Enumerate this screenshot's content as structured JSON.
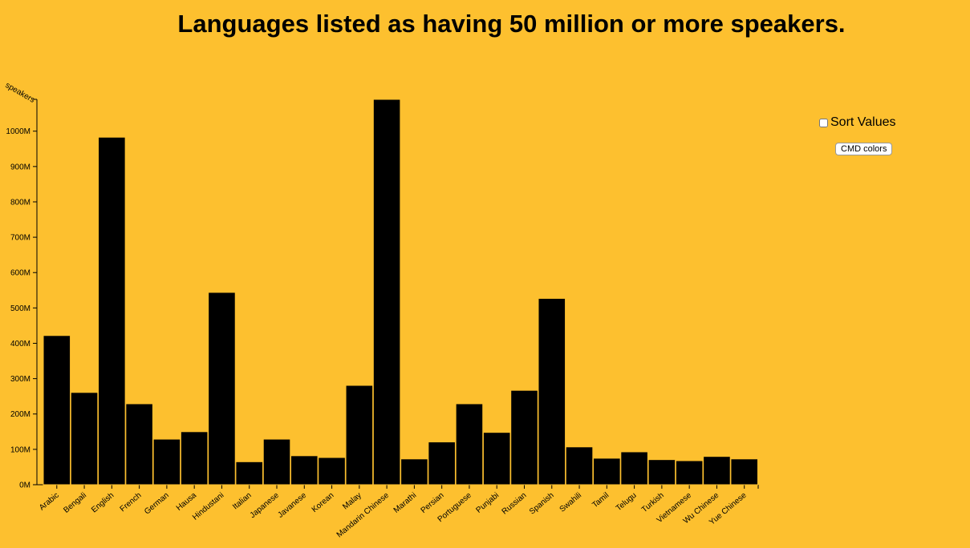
{
  "title": "Languages listed as having 50 million or more speakers.",
  "controls": {
    "sort_label": "Sort Values",
    "sort_checked": false,
    "colors_button": "CMD colors"
  },
  "colors": {
    "background": "#fdc02f",
    "bar": "#000000"
  },
  "chart_data": {
    "type": "bar",
    "title": "Languages listed as having 50 million or more speakers.",
    "xlabel": "",
    "ylabel": "speakers",
    "ylim": [
      0,
      1090
    ],
    "y_ticks": [
      {
        "value": 0,
        "label": "0M"
      },
      {
        "value": 100,
        "label": "100M"
      },
      {
        "value": 200,
        "label": "200M"
      },
      {
        "value": 300,
        "label": "300M"
      },
      {
        "value": 400,
        "label": "400M"
      },
      {
        "value": 500,
        "label": "500M"
      },
      {
        "value": 600,
        "label": "600M"
      },
      {
        "value": 700,
        "label": "700M"
      },
      {
        "value": 800,
        "label": "800M"
      },
      {
        "value": 900,
        "label": "900M"
      },
      {
        "value": 1000,
        "label": "1000M"
      }
    ],
    "categories": [
      "Arabic",
      "Bengali",
      "English",
      "French",
      "German",
      "Hausa",
      "Hindustani",
      "Italian",
      "Japanese",
      "Javanese",
      "Korean",
      "Malay",
      "Mandarin Chinese",
      "Marathi",
      "Persian",
      "Portuguese",
      "Punjabi",
      "Russian",
      "Spanish",
      "Swahili",
      "Tamil",
      "Telugu",
      "Turkish",
      "Vietnamese",
      "Wu Chinese",
      "Yue Chinese"
    ],
    "values": [
      422,
      261,
      983,
      229,
      129,
      150,
      544,
      65,
      129,
      82,
      77,
      281,
      1090,
      73,
      121,
      229,
      148,
      267,
      527,
      107,
      75,
      93,
      71,
      68,
      80,
      73
    ],
    "grid": false,
    "legend": "none"
  }
}
